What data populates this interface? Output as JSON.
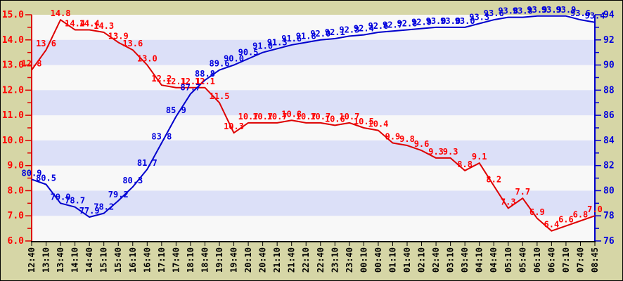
{
  "colors": {
    "background": "#d6d6a6",
    "plot_background": "#f8f8f8",
    "band": "#dce0f8",
    "red_line": "#dd0000",
    "red_label": "#ff0000",
    "blue_line": "#0000cc",
    "blue_label": "#0000dd",
    "x_label": "#000000",
    "frame": "#000000"
  },
  "chart_data": {
    "type": "line",
    "title": "",
    "xlabel": "",
    "ylabel_left": "",
    "ylabel_right": "",
    "grid": "horizontal-bands",
    "legend_position": "none",
    "x_labels": [
      "12:40",
      "13:10",
      "13:40",
      "14:10",
      "14:40",
      "15:10",
      "15:40",
      "16:10",
      "16:40",
      "17:10",
      "17:40",
      "18:10",
      "18:40",
      "19:10",
      "19:40",
      "20:10",
      "20:40",
      "21:10",
      "21:40",
      "22:10",
      "22:40",
      "23:10",
      "23:40",
      "00:10",
      "00:40",
      "01:10",
      "01:40",
      "02:10",
      "02:40",
      "03:10",
      "03:40",
      "04:10",
      "04:40",
      "05:10",
      "05:40",
      "06:10",
      "06:40",
      "07:10",
      "07:40",
      "08:45"
    ],
    "left_axis": {
      "min": 6.0,
      "max": 15.0,
      "major_step": 1.0,
      "minor_step": 0.5,
      "tick_labels": [
        "15.0",
        "14.0",
        "13.0",
        "12.0",
        "11.0",
        "10.0",
        "9.0",
        "8.0",
        "7.0",
        "6.0"
      ]
    },
    "right_axis": {
      "min": 76,
      "max": 94,
      "major_step": 2,
      "minor_step": 1,
      "tick_labels": [
        "94",
        "92",
        "90",
        "88",
        "86",
        "84",
        "82",
        "80",
        "78",
        "76"
      ]
    },
    "shaded_bands_left_units": [
      [
        7,
        8
      ],
      [
        9,
        10
      ],
      [
        11,
        12
      ],
      [
        13,
        14
      ]
    ],
    "series": [
      {
        "name": "red-series",
        "axis": "left",
        "color": "#dd0000",
        "label_color": "#ff0000",
        "values": [
          12.8,
          13.6,
          14.8,
          14.4,
          14.4,
          14.3,
          13.9,
          13.6,
          13.0,
          12.2,
          12.1,
          12.1,
          12.1,
          11.5,
          10.3,
          10.7,
          10.7,
          10.7,
          10.8,
          10.7,
          10.7,
          10.6,
          10.7,
          10.5,
          10.4,
          9.9,
          9.8,
          9.6,
          9.3,
          9.3,
          8.8,
          9.1,
          8.2,
          7.3,
          7.7,
          6.9,
          6.4,
          6.6,
          6.8,
          7.0
        ]
      },
      {
        "name": "blue-series",
        "axis": "right",
        "color": "#0000cc",
        "label_color": "#0000dd",
        "values": [
          80.9,
          80.5,
          79.0,
          78.7,
          77.9,
          78.2,
          79.2,
          80.3,
          81.7,
          83.8,
          85.9,
          87.7,
          88.8,
          89.6,
          90.0,
          90.5,
          91.0,
          91.3,
          91.6,
          91.8,
          92.0,
          92.1,
          92.3,
          92.4,
          92.6,
          92.7,
          92.8,
          92.9,
          93.0,
          93.0,
          93.0,
          93.3,
          93.6,
          93.8,
          93.8,
          93.9,
          93.9,
          93.9,
          93.6,
          93.4
        ]
      }
    ]
  }
}
